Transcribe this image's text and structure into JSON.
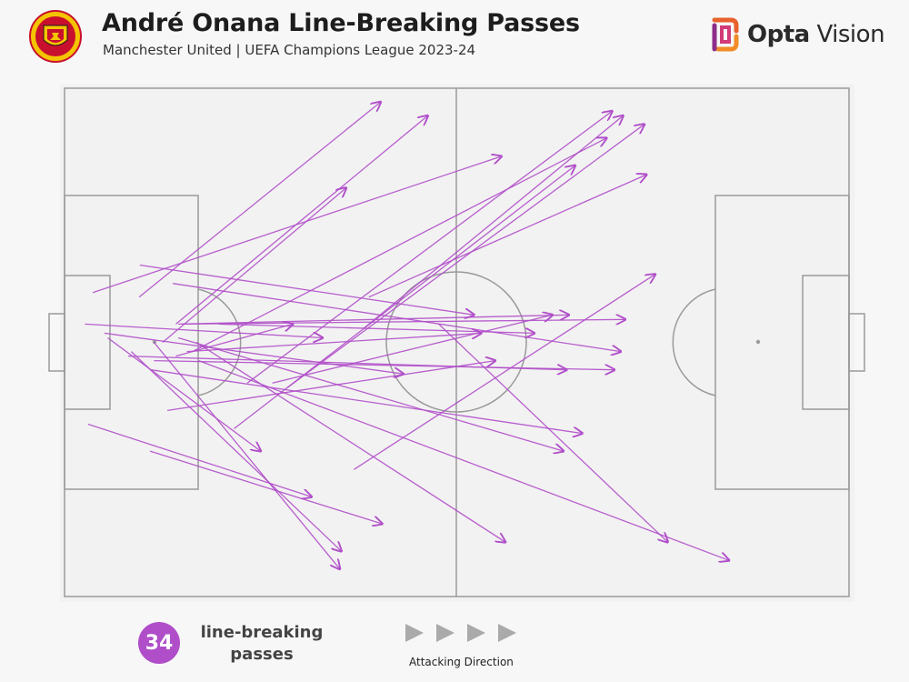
{
  "header": {
    "title": "André Onana Line-Breaking Passes",
    "subtitle": "Manchester United | UEFA Champions League 2023-24"
  },
  "brand": {
    "name_bold": "Opta",
    "name_light": " Vision"
  },
  "colors": {
    "pass": "#b04ec9",
    "pitch_line": "#9a9a9a",
    "pitch_bg": "#f7f7f7"
  },
  "icons": {
    "badge": "manchester-united-crest-icon",
    "brand": "opta-logo-icon",
    "direction": "play-triangle-icon"
  },
  "legend": {
    "count": "34",
    "label_line1": "line-breaking",
    "label_line2": "passes",
    "direction_label": "Attacking Direction"
  },
  "chart_data": {
    "type": "scatter",
    "description_units": "pitch coordinates: x 0-100 (own goal to opponent goal), y 0-100 (top to bottom)",
    "xlim": [
      0,
      100
    ],
    "ylim": [
      0,
      100
    ],
    "passes": [
      {
        "x0": 9.5,
        "y0": 41.1,
        "x1": 40.3,
        "y1": 2.7
      },
      {
        "x0": 14.2,
        "y0": 46.4,
        "x1": 46.3,
        "y1": 5.4
      },
      {
        "x0": 3.6,
        "y0": 40.2,
        "x1": 55.7,
        "y1": 13.4
      },
      {
        "x0": 12.5,
        "y0": 50.0,
        "x1": 35.9,
        "y1": 19.6
      },
      {
        "x0": 23.3,
        "y0": 58.0,
        "x1": 69.8,
        "y1": 4.5
      },
      {
        "x0": 28.4,
        "y0": 58.9,
        "x1": 73.9,
        "y1": 7.1
      },
      {
        "x0": 38.1,
        "y0": 47.3,
        "x1": 71.2,
        "y1": 5.4
      },
      {
        "x0": 16.3,
        "y0": 51.8,
        "x1": 69.1,
        "y1": 9.8
      },
      {
        "x0": 21.6,
        "y0": 67.0,
        "x1": 65.1,
        "y1": 15.2
      },
      {
        "x0": 38.8,
        "y0": 41.1,
        "x1": 74.2,
        "y1": 17.0
      },
      {
        "x0": 36.9,
        "y0": 75.0,
        "x1": 75.3,
        "y1": 36.6
      },
      {
        "x0": 9.6,
        "y0": 34.8,
        "x1": 52.2,
        "y1": 44.6
      },
      {
        "x0": 13.8,
        "y0": 38.4,
        "x1": 70.9,
        "y1": 51.8
      },
      {
        "x0": 14.5,
        "y0": 46.4,
        "x1": 64.3,
        "y1": 44.6
      },
      {
        "x0": 15.0,
        "y0": 46.4,
        "x1": 71.5,
        "y1": 45.5
      },
      {
        "x0": 8.1,
        "y0": 52.7,
        "x1": 64.0,
        "y1": 55.4
      },
      {
        "x0": 11.4,
        "y0": 53.6,
        "x1": 70.1,
        "y1": 55.4
      },
      {
        "x0": 15.6,
        "y0": 51.8,
        "x1": 53.1,
        "y1": 48.2
      },
      {
        "x0": 2.6,
        "y0": 46.4,
        "x1": 32.9,
        "y1": 49.1
      },
      {
        "x0": 5.1,
        "y0": 48.2,
        "x1": 43.2,
        "y1": 56.2
      },
      {
        "x0": 13.1,
        "y0": 63.4,
        "x1": 54.9,
        "y1": 53.6
      },
      {
        "x0": 11.0,
        "y0": 55.4,
        "x1": 66.0,
        "y1": 67.9
      },
      {
        "x0": 14.5,
        "y0": 49.1,
        "x1": 63.6,
        "y1": 71.4
      },
      {
        "x0": 3.0,
        "y0": 66.1,
        "x1": 31.5,
        "y1": 80.4
      },
      {
        "x0": 10.9,
        "y0": 71.4,
        "x1": 40.5,
        "y1": 85.7
      },
      {
        "x0": 5.5,
        "y0": 49.1,
        "x1": 25.0,
        "y1": 71.4
      },
      {
        "x0": 8.5,
        "y0": 51.8,
        "x1": 35.3,
        "y1": 91.1
      },
      {
        "x0": 11.4,
        "y0": 50.0,
        "x1": 35.1,
        "y1": 94.6
      },
      {
        "x0": 16.8,
        "y0": 50.0,
        "x1": 56.2,
        "y1": 89.3
      },
      {
        "x0": 47.7,
        "y0": 46.4,
        "x1": 76.9,
        "y1": 89.3
      },
      {
        "x0": 17.1,
        "y0": 53.6,
        "x1": 84.7,
        "y1": 92.9
      },
      {
        "x0": 19.7,
        "y0": 46.4,
        "x1": 59.9,
        "y1": 48.2
      },
      {
        "x0": 26.5,
        "y0": 58.0,
        "x1": 62.2,
        "y1": 44.6
      },
      {
        "x0": 14.2,
        "y0": 52.7,
        "x1": 29.1,
        "y1": 46.4
      }
    ]
  }
}
